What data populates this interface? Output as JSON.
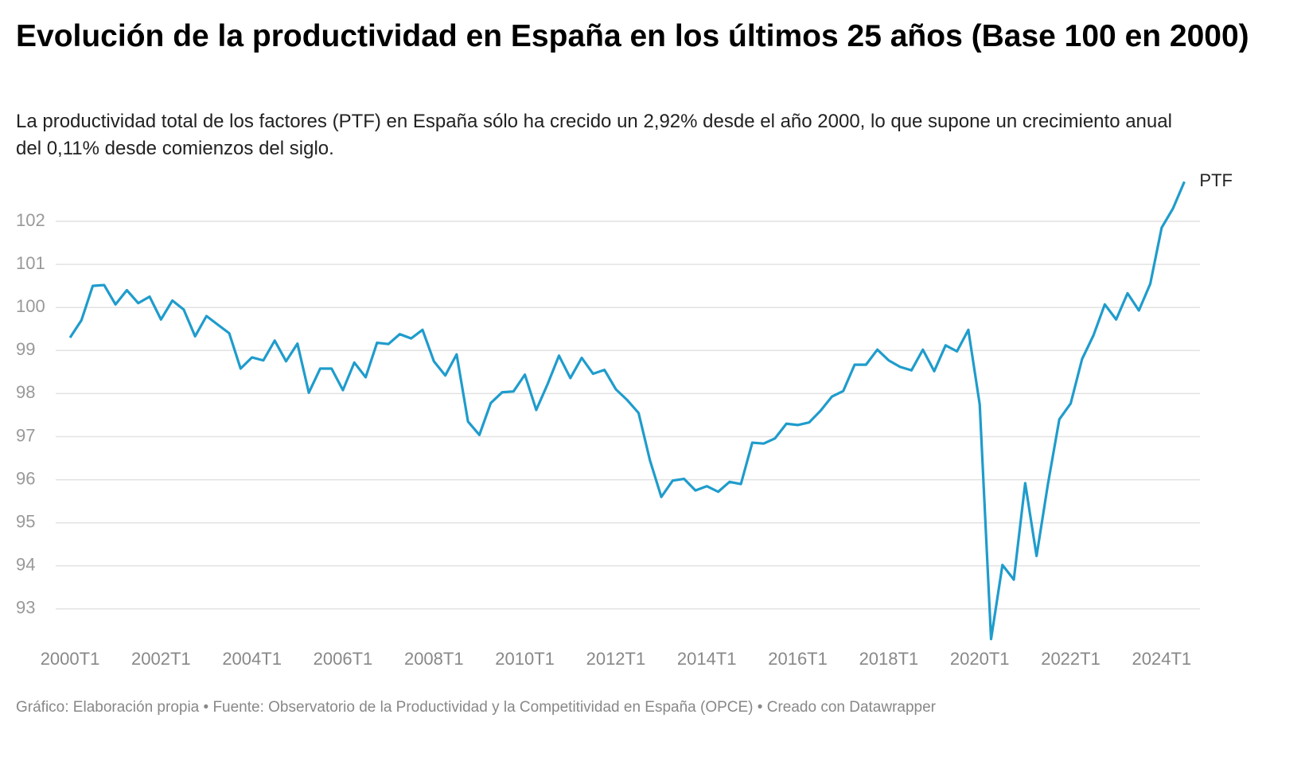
{
  "chart_data": {
    "type": "line",
    "title": "Evolución de la productividad en España en los últimos 25 años (Base 100 en 2000)",
    "subtitle": "La productividad total de los factores (PTF) en España sólo ha crecido un 2,92% desde el año 2000, lo que supone un crecimiento anual del 0,11% desde comienzos del siglo.",
    "footer": "Gráfico: Elaboración propia • Fuente: Observatorio de la Productividad y la Competitividad en España (OPCE) • Creado con Datawrapper",
    "categories": [
      "2000T1",
      null,
      null,
      null,
      null,
      null,
      null,
      null,
      "2002T1",
      null,
      null,
      null,
      null,
      null,
      null,
      null,
      "2004T1",
      null,
      null,
      null,
      null,
      null,
      null,
      null,
      "2006T1",
      null,
      null,
      null,
      null,
      null,
      null,
      null,
      "2008T1",
      null,
      null,
      null,
      null,
      null,
      null,
      null,
      "2010T1",
      null,
      null,
      null,
      null,
      null,
      null,
      null,
      "2012T1",
      null,
      null,
      null,
      null,
      null,
      null,
      null,
      "2014T1",
      null,
      null,
      null,
      null,
      null,
      null,
      null,
      "2016T1",
      null,
      null,
      null,
      null,
      null,
      null,
      null,
      "2018T1",
      null,
      null,
      null,
      null,
      null,
      null,
      null,
      "2020T1",
      null,
      null,
      null,
      null,
      null,
      null,
      null,
      "2022T1",
      null,
      null,
      null,
      null,
      null,
      null,
      null,
      "2024T1",
      null,
      null
    ],
    "series": [
      {
        "name": "PTF",
        "color": "#1f9ccc",
        "values": [
          99.3,
          99.7,
          100.5,
          100.52,
          100.07,
          100.4,
          100.1,
          100.25,
          99.72,
          100.16,
          99.95,
          99.33,
          99.8,
          99.6,
          99.4,
          98.58,
          98.84,
          98.77,
          99.23,
          98.75,
          99.16,
          98.02,
          98.58,
          98.58,
          98.08,
          98.72,
          98.38,
          99.18,
          99.15,
          99.38,
          99.28,
          99.48,
          98.75,
          98.42,
          98.91,
          97.35,
          97.04,
          97.78,
          98.03,
          98.05,
          98.44,
          97.62,
          98.22,
          98.88,
          98.36,
          98.83,
          98.46,
          98.55,
          98.1,
          97.85,
          97.55,
          96.45,
          95.6,
          95.98,
          96.02,
          95.75,
          95.85,
          95.72,
          95.95,
          95.9,
          96.86,
          96.84,
          96.96,
          97.3,
          97.27,
          97.33,
          97.6,
          97.93,
          98.06,
          98.67,
          98.67,
          99.02,
          98.77,
          98.62,
          98.54,
          99.02,
          98.52,
          99.12,
          98.98,
          99.48,
          97.75,
          92.3,
          94.02,
          93.68,
          95.92,
          94.23,
          95.9,
          97.4,
          97.77,
          98.8,
          99.35,
          100.07,
          99.72,
          100.33,
          99.93,
          100.55,
          101.85,
          102.3,
          102.92
        ]
      }
    ],
    "ylim": [
      92.2,
      103
    ],
    "yticks": [
      93,
      94,
      95,
      96,
      97,
      98,
      99,
      100,
      101,
      102
    ],
    "grid": true
  }
}
